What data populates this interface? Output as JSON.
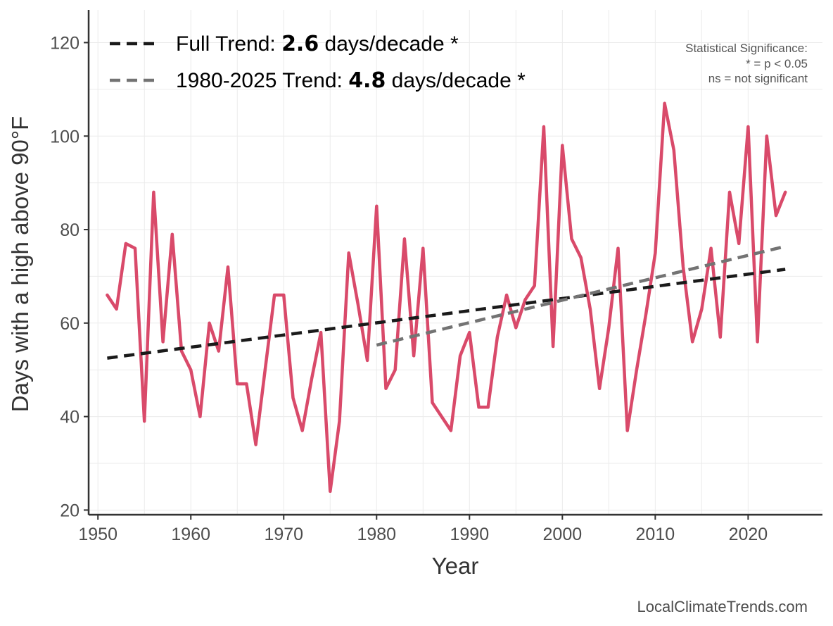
{
  "chart_data": {
    "type": "line",
    "title": "",
    "xlabel": "Year",
    "ylabel": "Days with a high above 90°F",
    "xlim": [
      1949,
      2028
    ],
    "ylim": [
      19,
      127
    ],
    "x_ticks": [
      1950,
      1960,
      1970,
      1980,
      1990,
      2000,
      2010,
      2020
    ],
    "y_ticks": [
      20,
      40,
      60,
      80,
      100,
      120
    ],
    "grid": true,
    "series": [
      {
        "name": "Days above 90°F",
        "color": "#d94a6a",
        "x": [
          1951,
          1952,
          1953,
          1954,
          1955,
          1956,
          1957,
          1958,
          1959,
          1960,
          1961,
          1962,
          1963,
          1964,
          1965,
          1966,
          1967,
          1968,
          1969,
          1970,
          1971,
          1972,
          1973,
          1974,
          1975,
          1976,
          1977,
          1978,
          1979,
          1980,
          1981,
          1982,
          1983,
          1984,
          1985,
          1986,
          1987,
          1988,
          1989,
          1990,
          1991,
          1992,
          1993,
          1994,
          1995,
          1996,
          1997,
          1998,
          1999,
          2000,
          2001,
          2002,
          2003,
          2004,
          2005,
          2006,
          2007,
          2008,
          2009,
          2010,
          2011,
          2012,
          2013,
          2014,
          2015,
          2016,
          2017,
          2018,
          2019,
          2020,
          2021,
          2022,
          2023,
          2024
        ],
        "values": [
          66,
          63,
          77,
          76,
          39,
          88,
          56,
          79,
          54,
          50,
          40,
          60,
          54,
          72,
          47,
          47,
          34,
          50,
          66,
          66,
          44,
          37,
          48,
          58,
          24,
          39,
          75,
          64,
          52,
          85,
          46,
          50,
          78,
          53,
          76,
          43,
          40,
          37,
          53,
          58,
          42,
          42,
          57,
          66,
          59,
          65,
          68,
          102,
          55,
          98,
          78,
          74,
          63,
          46,
          59,
          76,
          37,
          50,
          62,
          75,
          107,
          97,
          72,
          56,
          63,
          76,
          57,
          88,
          77,
          102,
          56,
          100,
          83,
          88
        ]
      }
    ],
    "trends": [
      {
        "name": "Full Trend",
        "label_prefix": "Full Trend: ",
        "rate": "2.6",
        "label_suffix": " days/decade *",
        "color": "#1a1a1a",
        "x": [
          1951,
          2024
        ],
        "y": [
          52.5,
          71.5
        ]
      },
      {
        "name": "1980-2025 Trend",
        "label_prefix": "1980-2025 Trend: ",
        "rate": "4.8",
        "label_suffix": " days/decade *",
        "color": "#737373",
        "x": [
          1980,
          2024
        ],
        "y": [
          55.3,
          76.4
        ]
      }
    ],
    "legend_position": "top-left",
    "annotations": {
      "significance": [
        "Statistical Significance:",
        "* = p < 0.05",
        "ns = not significant"
      ]
    },
    "credit": "LocalClimateTrends.com"
  }
}
